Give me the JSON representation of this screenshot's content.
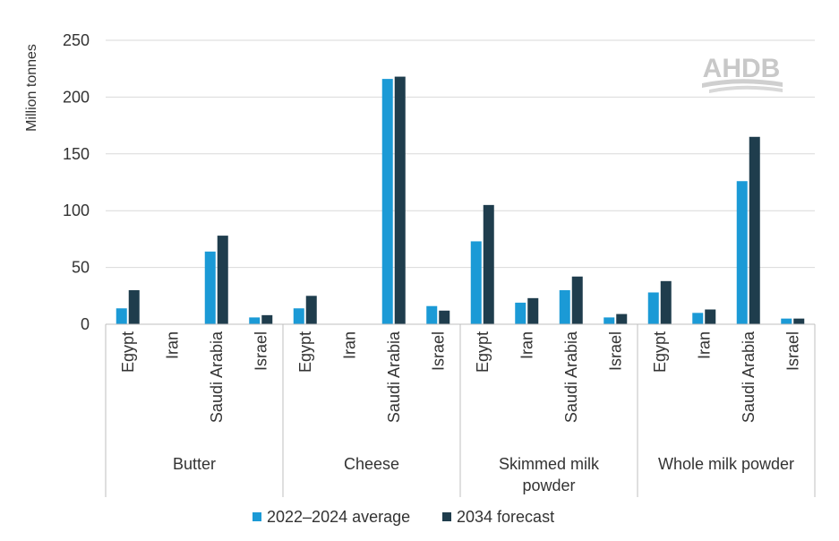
{
  "chart_data": {
    "type": "bar",
    "ylabel": "Million tonnes",
    "ylim": [
      0,
      250
    ],
    "yticks": [
      0,
      50,
      100,
      150,
      200,
      250
    ],
    "grid": true,
    "legend_position": "bottom",
    "watermark": "AHDB",
    "groups": [
      {
        "label": "Butter",
        "categories": [
          "Egypt",
          "Iran",
          "Saudi Arabia",
          "Israel"
        ]
      },
      {
        "label": "Cheese",
        "categories": [
          "Egypt",
          "Iran",
          "Saudi Arabia",
          "Israel"
        ]
      },
      {
        "label": "Skimmed milk powder",
        "label_lines": [
          "Skimmed milk",
          "powder"
        ],
        "categories": [
          "Egypt",
          "Iran",
          "Saudi Arabia",
          "Israel"
        ]
      },
      {
        "label": "Whole milk powder",
        "categories": [
          "Egypt",
          "Iran",
          "Saudi Arabia",
          "Israel"
        ]
      }
    ],
    "series": [
      {
        "name": "2022–2024 average",
        "color": "#1b9ad6",
        "values": [
          [
            14,
            0,
            64,
            6
          ],
          [
            14,
            0,
            216,
            16
          ],
          [
            73,
            19,
            30,
            6
          ],
          [
            28,
            10,
            126,
            5
          ]
        ]
      },
      {
        "name": "2034 forecast",
        "color": "#1f3d4d",
        "values": [
          [
            30,
            0,
            78,
            8
          ],
          [
            25,
            0,
            218,
            12
          ],
          [
            105,
            23,
            42,
            9
          ],
          [
            38,
            13,
            165,
            5
          ]
        ]
      }
    ]
  }
}
